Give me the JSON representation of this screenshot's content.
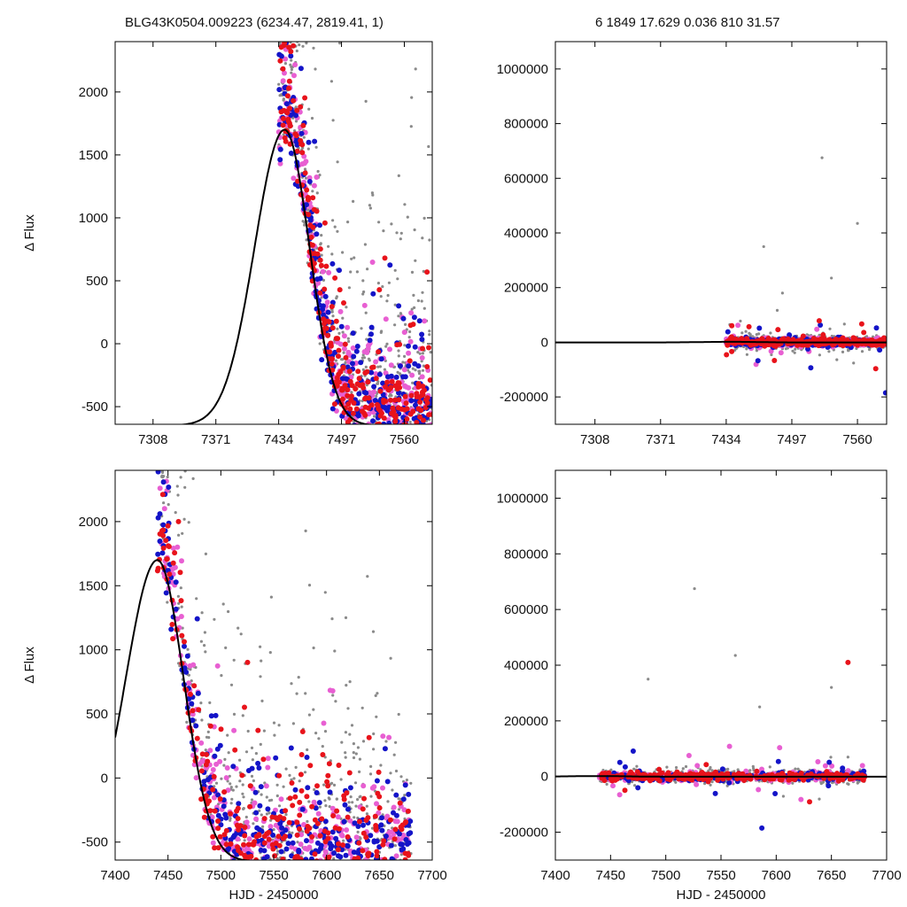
{
  "header": {
    "left": "BLG43K0504.009223 (6234.47, 2819.41,     1)",
    "right": "6   1849   17.629   0.036   810   31.57"
  },
  "colors": {
    "model": "#000000",
    "gray": "#8a8a8a",
    "red": "#e8131b",
    "blue": "#1414c8",
    "magenta": "#e85fd2"
  },
  "chart_data": [
    {
      "id": "top-left",
      "type": "scatter",
      "title": "",
      "xlabel": "",
      "ylabel": "Δ Flux",
      "xlim": [
        7270,
        7588
      ],
      "ylim": [
        -640,
        2400
      ],
      "xticks": [
        7308,
        7371,
        7434,
        7497,
        7560
      ],
      "yticks": [
        -500,
        0,
        500,
        1000,
        1500,
        2000
      ],
      "model": {
        "type": "line",
        "peak_x": 7440,
        "peak_y": 1700,
        "baseline": -650
      },
      "series": [
        {
          "color": "gray",
          "approx_x_range": [
            7434,
            7588
          ],
          "approx_y_range": [
            -600,
            2400
          ]
        },
        {
          "color": "red",
          "approx_x_range": [
            7434,
            7588
          ],
          "approx_y_range": [
            -600,
            2400
          ]
        },
        {
          "color": "blue",
          "approx_x_range": [
            7434,
            7588
          ],
          "approx_y_range": [
            -600,
            2400
          ]
        },
        {
          "color": "magenta",
          "approx_x_range": [
            7434,
            7588
          ],
          "approx_y_range": [
            -600,
            1800
          ]
        }
      ]
    },
    {
      "id": "top-right",
      "type": "scatter",
      "title": "",
      "xlabel": "",
      "ylabel": "",
      "xlim": [
        7270,
        7588
      ],
      "ylim": [
        -300000,
        1100000
      ],
      "xticks": [
        7308,
        7371,
        7434,
        7497,
        7560
      ],
      "yticks": [
        -200000,
        0,
        200000,
        400000,
        600000,
        800000,
        1000000
      ],
      "model": {
        "type": "line",
        "peak_x": 7440,
        "peak_y": 1700,
        "baseline": -650
      },
      "outliers": [
        {
          "x": 7470,
          "y": 350000
        },
        {
          "x": 7526,
          "y": 675000
        },
        {
          "x": 7560,
          "y": 435000
        },
        {
          "x": 7587,
          "y": -185000
        },
        {
          "x": 7488,
          "y": 180000
        },
        {
          "x": 7535,
          "y": 235000
        }
      ]
    },
    {
      "id": "bottom-left",
      "type": "scatter",
      "title": "",
      "xlabel": "HJD - 2450000",
      "ylabel": "Δ Flux",
      "xlim": [
        7400,
        7700
      ],
      "ylim": [
        -640,
        2400
      ],
      "xticks": [
        7400,
        7450,
        7500,
        7550,
        7600,
        7650,
        7700
      ],
      "yticks": [
        -500,
        0,
        500,
        1000,
        1500,
        2000
      ],
      "model": {
        "type": "line",
        "peak_x": 7440,
        "peak_y": 1700,
        "baseline": -650
      },
      "series": [
        {
          "color": "gray",
          "approx_x_range": [
            7440,
            7680
          ],
          "approx_y_range": [
            -600,
            2400
          ]
        },
        {
          "color": "red",
          "approx_x_range": [
            7440,
            7680
          ],
          "approx_y_range": [
            -600,
            2400
          ]
        },
        {
          "color": "blue",
          "approx_x_range": [
            7440,
            7680
          ],
          "approx_y_range": [
            -600,
            2400
          ]
        },
        {
          "color": "magenta",
          "approx_x_range": [
            7440,
            7680
          ],
          "approx_y_range": [
            -600,
            1800
          ]
        }
      ]
    },
    {
      "id": "bottom-right",
      "type": "scatter",
      "title": "",
      "xlabel": "HJD - 2450000",
      "ylabel": "",
      "xlim": [
        7400,
        7700
      ],
      "ylim": [
        -300000,
        1100000
      ],
      "xticks": [
        7400,
        7450,
        7500,
        7550,
        7600,
        7650,
        7700
      ],
      "yticks": [
        -200000,
        0,
        200000,
        400000,
        600000,
        800000,
        1000000
      ],
      "model": {
        "type": "line",
        "peak_x": 7440,
        "peak_y": 1700,
        "baseline": -650
      },
      "outliers": [
        {
          "x": 7484,
          "y": 350000
        },
        {
          "x": 7526,
          "y": 675000
        },
        {
          "x": 7563,
          "y": 435000
        },
        {
          "x": 7587,
          "y": -185000
        },
        {
          "x": 7665,
          "y": 410000
        },
        {
          "x": 7665,
          "y": 70000
        },
        {
          "x": 7585,
          "y": 250000
        },
        {
          "x": 7650,
          "y": 320000
        }
      ]
    }
  ]
}
